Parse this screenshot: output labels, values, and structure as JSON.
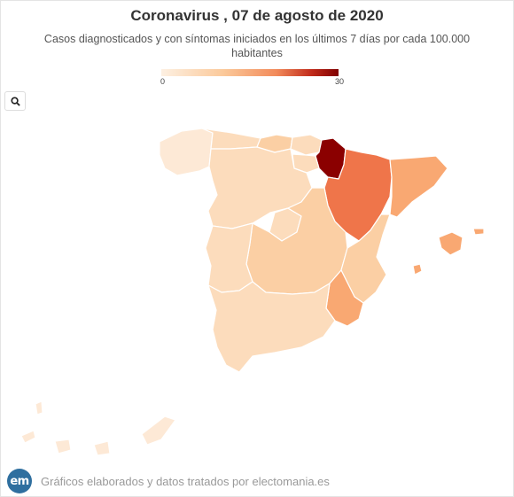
{
  "title": "Coronavirus , 07 de agosto de 2020",
  "subtitle": "Casos diagnosticados y con síntomas iniciados en los últimos 7 días por cada 100.000 habitantes",
  "legend": {
    "min": "0",
    "max": "30"
  },
  "zoom_icon": "search-icon",
  "credit": "Gráficos elaborados y datos tratados por electomania.es",
  "logo_text": "em",
  "colors": {
    "lightest": "#fde9d6",
    "light": "#fcdcbc",
    "light_mid": "#fbcfa4",
    "mid": "#f9a872",
    "strong": "#ef754a",
    "darkest": "#8b0000",
    "logo": "#2f6f9f"
  }
}
